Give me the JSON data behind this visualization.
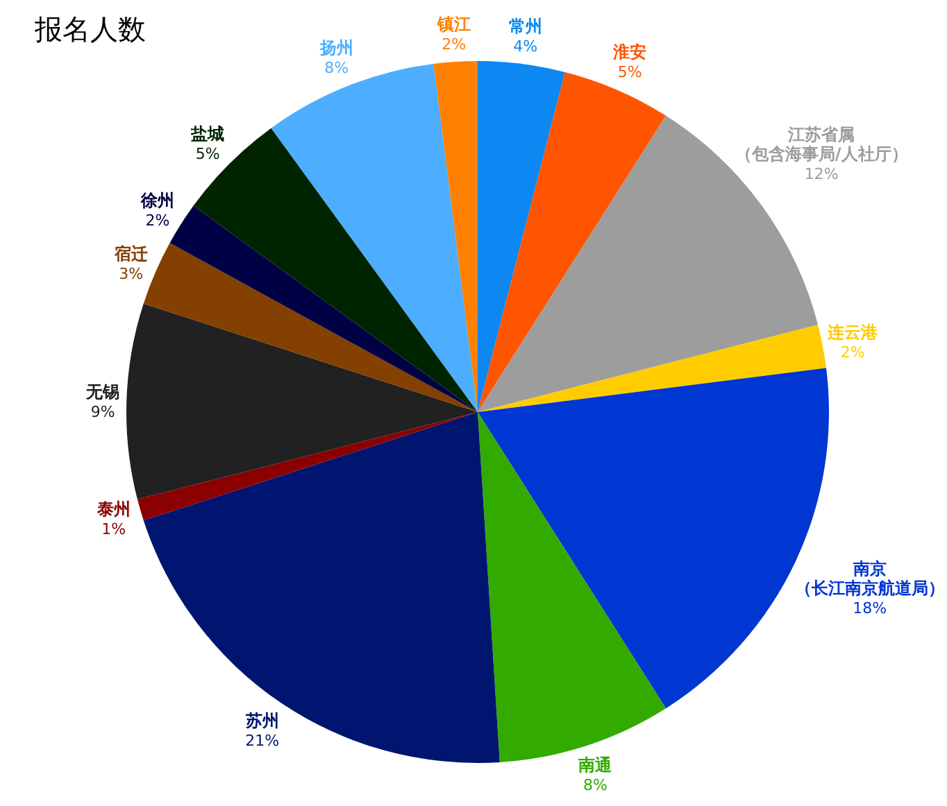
{
  "chart_data": {
    "type": "pie",
    "title": "报名人数",
    "categories": [
      "常州",
      "淮安",
      "江苏省属（包含海事局/人社厅）",
      "连云港",
      "南京（长江南京航道局）",
      "南通",
      "苏州",
      "泰州",
      "无锡",
      "宿迁",
      "徐州",
      "盐城",
      "扬州",
      "镇江"
    ],
    "values": [
      4,
      5,
      12,
      2,
      18,
      8,
      21,
      1,
      9,
      3,
      2,
      5,
      8,
      2
    ],
    "value_labels": [
      "4%",
      "5%",
      "12%",
      "2%",
      "18%",
      "8%",
      "21%",
      "1%",
      "9%",
      "3%",
      "2%",
      "5%",
      "8%",
      "2%"
    ],
    "colors": [
      "#0d87f2",
      "#ff5500",
      "#9d9d9d",
      "#ffcc00",
      "#0036d2",
      "#33aa00",
      "#001570",
      "#8b0000",
      "#212121",
      "#844000",
      "#000044",
      "#002400",
      "#4daeff",
      "#ff8000"
    ]
  }
}
